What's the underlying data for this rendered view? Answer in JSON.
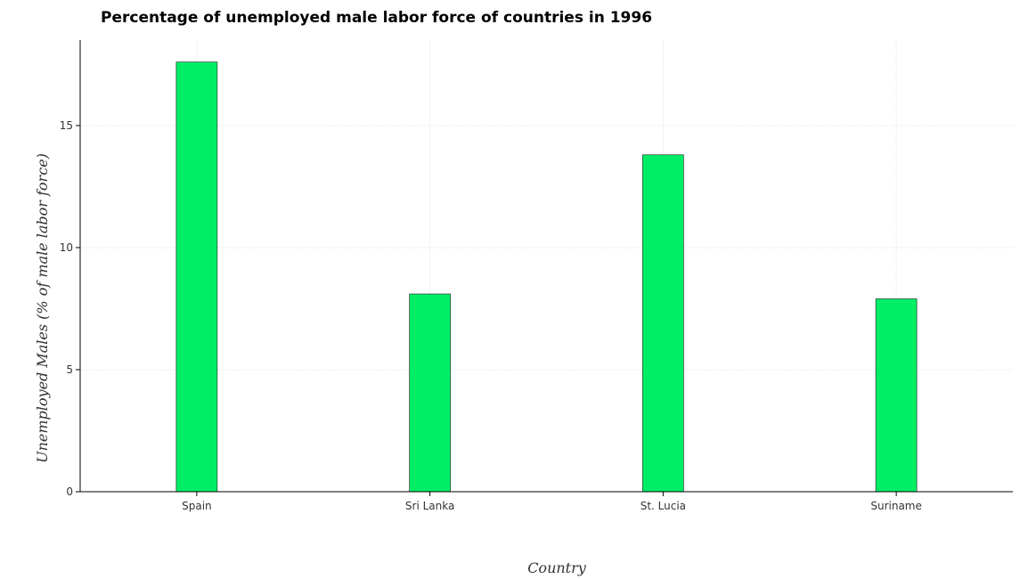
{
  "chart_data": {
    "type": "bar",
    "title": "Percentage of unemployed male labor force of countries in 1996",
    "xlabel": "Country",
    "ylabel": "Unemployed Males (% of male labor force)",
    "categories": [
      "Spain",
      "Sri Lanka",
      "St. Lucia",
      "Suriname"
    ],
    "values": [
      17.6,
      8.1,
      13.8,
      7.9
    ],
    "ylim": [
      0,
      18.5
    ],
    "yticks": [
      0,
      5,
      10,
      15
    ],
    "ytick_labels": [
      "0",
      "5",
      "10",
      "15"
    ],
    "grid": true,
    "bar_color": "#00ee66"
  }
}
